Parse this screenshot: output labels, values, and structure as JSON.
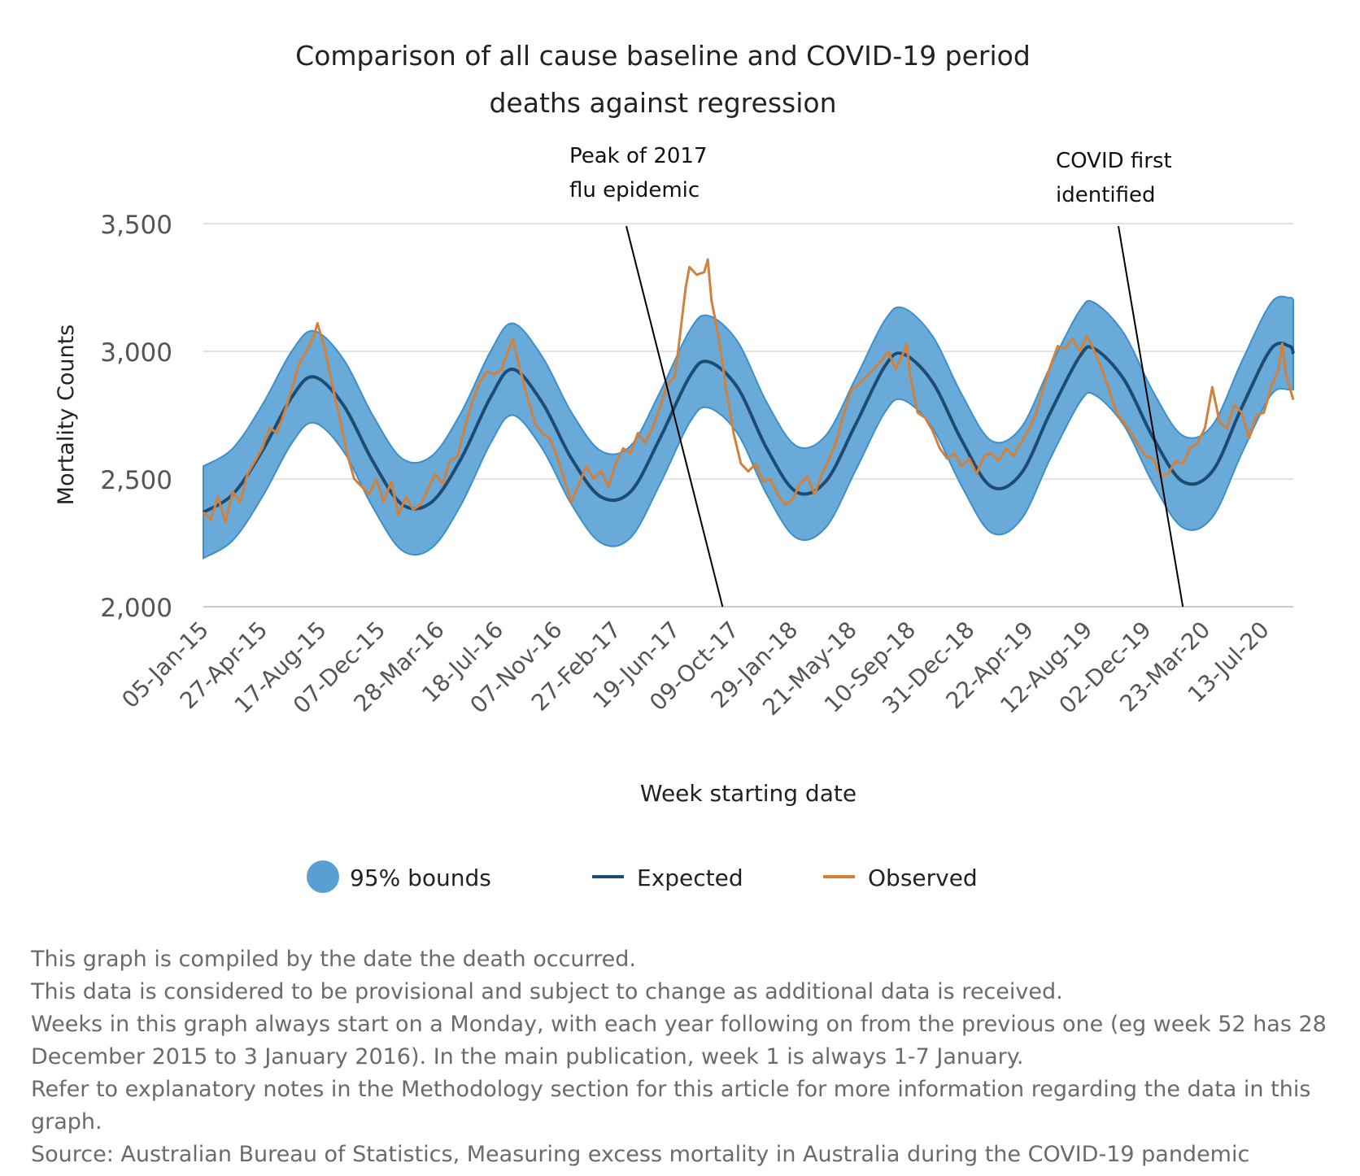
{
  "chart_data": {
    "type": "line",
    "title_lines": [
      "Comparison of all cause baseline and COVID-19 period",
      "deaths against regression"
    ],
    "xlabel": "Week starting date",
    "ylabel": "Mortality Counts",
    "ylim": [
      2000,
      3500
    ],
    "yticks": [
      2000,
      2500,
      3000,
      3500
    ],
    "ytick_labels": [
      "2,000",
      "2,500",
      "3,000",
      "3,500"
    ],
    "x_domain": [
      "2015-01-05",
      "2020-09-07"
    ],
    "x_tick_dates": [
      "2015-01-05",
      "2015-04-27",
      "2015-08-17",
      "2015-12-07",
      "2016-03-28",
      "2016-07-18",
      "2016-11-07",
      "2017-02-27",
      "2017-06-19",
      "2017-10-09",
      "2018-01-29",
      "2018-05-21",
      "2018-09-10",
      "2018-12-31",
      "2019-04-22",
      "2019-08-12",
      "2019-12-02",
      "2020-03-23",
      "2020-07-13"
    ],
    "x_tick_labels": [
      "05-Jan-15",
      "27-Apr-15",
      "17-Aug-15",
      "07-Dec-15",
      "28-Mar-16",
      "18-Jul-16",
      "07-Nov-16",
      "27-Feb-17",
      "19-Jun-17",
      "09-Oct-17",
      "29-Jan-18",
      "21-May-18",
      "10-Sep-18",
      "31-Dec-18",
      "22-Apr-19",
      "12-Aug-19",
      "02-Dec-19",
      "23-Mar-20",
      "13-Jul-20"
    ],
    "grid": true,
    "legend_position": "bottom",
    "series": [
      {
        "name": "95% bounds",
        "kind": "band",
        "color": "#3d8fcc",
        "fill_color": "#6aaad9",
        "points": [
          [
            "2015-01-05",
            2190,
            2550
          ],
          [
            "2015-03-02",
            2260,
            2620
          ],
          [
            "2015-04-27",
            2430,
            2790
          ],
          [
            "2015-06-22",
            2640,
            3000
          ],
          [
            "2015-08-03",
            2720,
            3080
          ],
          [
            "2015-09-28",
            2610,
            2970
          ],
          [
            "2015-11-23",
            2390,
            2750
          ],
          [
            "2016-01-18",
            2220,
            2580
          ],
          [
            "2016-03-14",
            2230,
            2590
          ],
          [
            "2016-05-09",
            2400,
            2760
          ],
          [
            "2016-07-04",
            2640,
            3000
          ],
          [
            "2016-08-15",
            2750,
            3110
          ],
          [
            "2016-10-10",
            2620,
            2980
          ],
          [
            "2016-12-05",
            2400,
            2760
          ],
          [
            "2017-01-30",
            2250,
            2610
          ],
          [
            "2017-03-27",
            2270,
            2630
          ],
          [
            "2017-05-22",
            2480,
            2840
          ],
          [
            "2017-07-17",
            2720,
            3080
          ],
          [
            "2017-08-21",
            2780,
            3140
          ],
          [
            "2017-10-16",
            2680,
            3040
          ],
          [
            "2017-12-11",
            2440,
            2800
          ],
          [
            "2018-02-05",
            2270,
            2630
          ],
          [
            "2018-04-02",
            2310,
            2670
          ],
          [
            "2018-05-28",
            2530,
            2890
          ],
          [
            "2018-07-23",
            2760,
            3120
          ],
          [
            "2018-08-27",
            2810,
            3170
          ],
          [
            "2018-10-22",
            2700,
            3060
          ],
          [
            "2018-12-17",
            2470,
            2830
          ],
          [
            "2019-02-11",
            2290,
            2650
          ],
          [
            "2019-04-08",
            2340,
            2700
          ],
          [
            "2019-06-03",
            2580,
            2940
          ],
          [
            "2019-07-29",
            2800,
            3160
          ],
          [
            "2019-08-26",
            2830,
            3190
          ],
          [
            "2019-10-21",
            2710,
            3070
          ],
          [
            "2019-12-16",
            2480,
            2840
          ],
          [
            "2020-02-10",
            2310,
            2670
          ],
          [
            "2020-04-06",
            2350,
            2710
          ],
          [
            "2020-06-01",
            2600,
            2960
          ],
          [
            "2020-07-27",
            2830,
            3190
          ],
          [
            "2020-08-31",
            2850,
            3210
          ],
          [
            "2020-09-07",
            2850,
            3200
          ]
        ]
      },
      {
        "name": "Expected",
        "kind": "line",
        "color": "#1e4b72",
        "points": [
          [
            "2015-01-05",
            2370
          ],
          [
            "2015-03-02",
            2440
          ],
          [
            "2015-04-27",
            2610
          ],
          [
            "2015-06-22",
            2820
          ],
          [
            "2015-08-03",
            2900
          ],
          [
            "2015-09-28",
            2790
          ],
          [
            "2015-11-23",
            2570
          ],
          [
            "2016-01-18",
            2400
          ],
          [
            "2016-03-14",
            2410
          ],
          [
            "2016-05-09",
            2580
          ],
          [
            "2016-07-04",
            2820
          ],
          [
            "2016-08-15",
            2930
          ],
          [
            "2016-10-10",
            2800
          ],
          [
            "2016-12-05",
            2580
          ],
          [
            "2017-01-30",
            2430
          ],
          [
            "2017-03-27",
            2450
          ],
          [
            "2017-05-22",
            2660
          ],
          [
            "2017-07-17",
            2900
          ],
          [
            "2017-08-21",
            2960
          ],
          [
            "2017-10-16",
            2860
          ],
          [
            "2017-12-11",
            2620
          ],
          [
            "2018-02-05",
            2450
          ],
          [
            "2018-04-02",
            2490
          ],
          [
            "2018-05-28",
            2710
          ],
          [
            "2018-07-23",
            2940
          ],
          [
            "2018-08-27",
            2990
          ],
          [
            "2018-10-22",
            2880
          ],
          [
            "2018-12-17",
            2650
          ],
          [
            "2019-02-11",
            2470
          ],
          [
            "2019-04-08",
            2520
          ],
          [
            "2019-06-03",
            2760
          ],
          [
            "2019-07-29",
            2980
          ],
          [
            "2019-08-26",
            3010
          ],
          [
            "2019-10-21",
            2890
          ],
          [
            "2019-12-16",
            2660
          ],
          [
            "2020-02-10",
            2490
          ],
          [
            "2020-04-06",
            2530
          ],
          [
            "2020-06-01",
            2780
          ],
          [
            "2020-07-27",
            3010
          ],
          [
            "2020-08-31",
            3020
          ],
          [
            "2020-09-07",
            2990
          ]
        ]
      },
      {
        "name": "Observed",
        "kind": "line",
        "color": "#d2813a",
        "points": [
          [
            "2015-01-05",
            2370
          ],
          [
            "2015-01-19",
            2340
          ],
          [
            "2015-02-02",
            2430
          ],
          [
            "2015-02-16",
            2330
          ],
          [
            "2015-03-02",
            2450
          ],
          [
            "2015-03-16",
            2410
          ],
          [
            "2015-03-30",
            2520
          ],
          [
            "2015-04-13",
            2570
          ],
          [
            "2015-04-27",
            2620
          ],
          [
            "2015-05-11",
            2700
          ],
          [
            "2015-05-25",
            2680
          ],
          [
            "2015-06-08",
            2760
          ],
          [
            "2015-06-22",
            2850
          ],
          [
            "2015-07-06",
            2950
          ],
          [
            "2015-07-20",
            3000
          ],
          [
            "2015-08-03",
            3060
          ],
          [
            "2015-08-10",
            3110
          ],
          [
            "2015-08-24",
            3010
          ],
          [
            "2015-09-07",
            2870
          ],
          [
            "2015-09-21",
            2740
          ],
          [
            "2015-10-05",
            2600
          ],
          [
            "2015-10-19",
            2500
          ],
          [
            "2015-11-02",
            2470
          ],
          [
            "2015-11-16",
            2440
          ],
          [
            "2015-11-30",
            2500
          ],
          [
            "2015-12-14",
            2410
          ],
          [
            "2015-12-28",
            2490
          ],
          [
            "2016-01-11",
            2360
          ],
          [
            "2016-01-25",
            2430
          ],
          [
            "2016-02-08",
            2380
          ],
          [
            "2016-02-22",
            2400
          ],
          [
            "2016-03-07",
            2460
          ],
          [
            "2016-03-21",
            2520
          ],
          [
            "2016-04-04",
            2480
          ],
          [
            "2016-04-18",
            2570
          ],
          [
            "2016-05-02",
            2590
          ],
          [
            "2016-05-16",
            2700
          ],
          [
            "2016-05-30",
            2800
          ],
          [
            "2016-06-13",
            2880
          ],
          [
            "2016-06-27",
            2920
          ],
          [
            "2016-07-11",
            2910
          ],
          [
            "2016-07-25",
            2930
          ],
          [
            "2016-08-08",
            3010
          ],
          [
            "2016-08-15",
            3050
          ],
          [
            "2016-08-29",
            2930
          ],
          [
            "2016-09-12",
            2820
          ],
          [
            "2016-09-26",
            2720
          ],
          [
            "2016-10-10",
            2680
          ],
          [
            "2016-10-24",
            2660
          ],
          [
            "2016-11-07",
            2590
          ],
          [
            "2016-11-21",
            2500
          ],
          [
            "2016-12-05",
            2410
          ],
          [
            "2016-12-19",
            2480
          ],
          [
            "2017-01-02",
            2550
          ],
          [
            "2017-01-16",
            2500
          ],
          [
            "2017-01-30",
            2530
          ],
          [
            "2017-02-13",
            2470
          ],
          [
            "2017-02-27",
            2560
          ],
          [
            "2017-03-13",
            2620
          ],
          [
            "2017-03-27",
            2600
          ],
          [
            "2017-04-10",
            2680
          ],
          [
            "2017-04-24",
            2640
          ],
          [
            "2017-05-08",
            2700
          ],
          [
            "2017-05-22",
            2780
          ],
          [
            "2017-06-05",
            2870
          ],
          [
            "2017-06-19",
            2900
          ],
          [
            "2017-06-26",
            3010
          ],
          [
            "2017-07-03",
            3130
          ],
          [
            "2017-07-10",
            3250
          ],
          [
            "2017-07-17",
            3330
          ],
          [
            "2017-07-31",
            3300
          ],
          [
            "2017-08-14",
            3310
          ],
          [
            "2017-08-21",
            3360
          ],
          [
            "2017-08-28",
            3200
          ],
          [
            "2017-09-11",
            3050
          ],
          [
            "2017-09-25",
            2850
          ],
          [
            "2017-10-09",
            2680
          ],
          [
            "2017-10-23",
            2560
          ],
          [
            "2017-11-06",
            2530
          ],
          [
            "2017-11-20",
            2560
          ],
          [
            "2017-12-04",
            2490
          ],
          [
            "2017-12-18",
            2500
          ],
          [
            "2018-01-01",
            2440
          ],
          [
            "2018-01-15",
            2400
          ],
          [
            "2018-01-29",
            2420
          ],
          [
            "2018-02-12",
            2480
          ],
          [
            "2018-02-26",
            2510
          ],
          [
            "2018-03-12",
            2440
          ],
          [
            "2018-03-26",
            2520
          ],
          [
            "2018-04-09",
            2580
          ],
          [
            "2018-04-23",
            2650
          ],
          [
            "2018-05-07",
            2760
          ],
          [
            "2018-05-21",
            2850
          ],
          [
            "2018-06-04",
            2870
          ],
          [
            "2018-06-18",
            2900
          ],
          [
            "2018-07-02",
            2930
          ],
          [
            "2018-07-16",
            2960
          ],
          [
            "2018-07-30",
            3000
          ],
          [
            "2018-08-13",
            2930
          ],
          [
            "2018-08-27",
            2990
          ],
          [
            "2018-09-03",
            3030
          ],
          [
            "2018-09-10",
            2900
          ],
          [
            "2018-09-24",
            2760
          ],
          [
            "2018-10-08",
            2740
          ],
          [
            "2018-10-22",
            2690
          ],
          [
            "2018-11-05",
            2620
          ],
          [
            "2018-11-19",
            2580
          ],
          [
            "2018-12-03",
            2600
          ],
          [
            "2018-12-17",
            2550
          ],
          [
            "2018-12-31",
            2580
          ],
          [
            "2019-01-14",
            2520
          ],
          [
            "2019-01-28",
            2590
          ],
          [
            "2019-02-11",
            2600
          ],
          [
            "2019-02-25",
            2570
          ],
          [
            "2019-03-11",
            2620
          ],
          [
            "2019-03-25",
            2590
          ],
          [
            "2019-04-08",
            2640
          ],
          [
            "2019-04-22",
            2690
          ],
          [
            "2019-05-06",
            2750
          ],
          [
            "2019-05-20",
            2850
          ],
          [
            "2019-06-03",
            2940
          ],
          [
            "2019-06-17",
            3020
          ],
          [
            "2019-07-01",
            3010
          ],
          [
            "2019-07-15",
            3050
          ],
          [
            "2019-07-29",
            3000
          ],
          [
            "2019-08-12",
            3060
          ],
          [
            "2019-08-26",
            3000
          ],
          [
            "2019-09-09",
            2930
          ],
          [
            "2019-09-23",
            2850
          ],
          [
            "2019-10-07",
            2760
          ],
          [
            "2019-10-21",
            2720
          ],
          [
            "2019-11-04",
            2680
          ],
          [
            "2019-11-18",
            2630
          ],
          [
            "2019-12-02",
            2590
          ],
          [
            "2019-12-16",
            2580
          ],
          [
            "2019-12-30",
            2510
          ],
          [
            "2020-01-13",
            2520
          ],
          [
            "2020-01-27",
            2570
          ],
          [
            "2020-02-10",
            2560
          ],
          [
            "2020-02-24",
            2620
          ],
          [
            "2020-03-09",
            2640
          ],
          [
            "2020-03-23",
            2700
          ],
          [
            "2020-04-06",
            2860
          ],
          [
            "2020-04-20",
            2720
          ],
          [
            "2020-05-04",
            2700
          ],
          [
            "2020-05-18",
            2790
          ],
          [
            "2020-06-01",
            2760
          ],
          [
            "2020-06-15",
            2660
          ],
          [
            "2020-06-29",
            2750
          ],
          [
            "2020-07-13",
            2760
          ],
          [
            "2020-07-27",
            2860
          ],
          [
            "2020-08-10",
            2930
          ],
          [
            "2020-08-17",
            3030
          ],
          [
            "2020-08-24",
            2910
          ],
          [
            "2020-09-07",
            2810
          ]
        ]
      }
    ],
    "annotations": [
      {
        "lines": [
          "Peak of 2017",
          "flu epidemic"
        ],
        "x": "2017-09-18",
        "y": 2000
      },
      {
        "lines": [
          "COVID first",
          "identified"
        ],
        "x": "2020-02-10",
        "y": 2000
      }
    ]
  },
  "legend": {
    "bounds_label": "95% bounds",
    "expected_label": "Expected",
    "observed_label": "Observed"
  },
  "notes": [
    "This graph is compiled by the date the death occurred.",
    "This data is considered to be provisional and subject to change as additional data is received.",
    "Weeks in this graph always start on a Monday, with each year following on from the previous one (eg week 52 has 28 December 2015 to 3 January 2016). In the main publication, week 1 is always 1-7 January.",
    "Refer to explanatory notes in the Methodology section for this article for more information regarding the data in this graph.",
    "Source: Australian Bureau of Statistics, Measuring excess mortality in Australia during the COVID-19 pandemic"
  ]
}
